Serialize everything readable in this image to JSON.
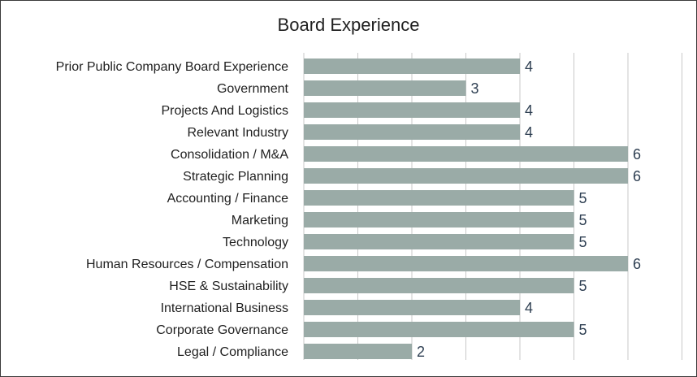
{
  "chart_data": {
    "type": "bar",
    "orientation": "horizontal",
    "title": "Board Experience",
    "categories": [
      "Prior Public Company Board Experience",
      "Government",
      "Projects And Logistics",
      "Relevant Industry",
      "Consolidation / M&A",
      "Strategic Planning",
      "Accounting / Finance",
      "Marketing",
      "Technology",
      "Human Resources / Compensation",
      "HSE & Sustainability",
      "International Business",
      "Corporate Governance",
      "Legal / Compliance"
    ],
    "values": [
      4,
      3,
      4,
      4,
      6,
      6,
      5,
      5,
      5,
      6,
      5,
      4,
      5,
      2
    ],
    "xlim": [
      0,
      7
    ],
    "grid": true,
    "data_labels": true,
    "bar_color": "#9aaba7",
    "grid_color": "#c8c8c8",
    "label_color": "#2e3f52"
  }
}
